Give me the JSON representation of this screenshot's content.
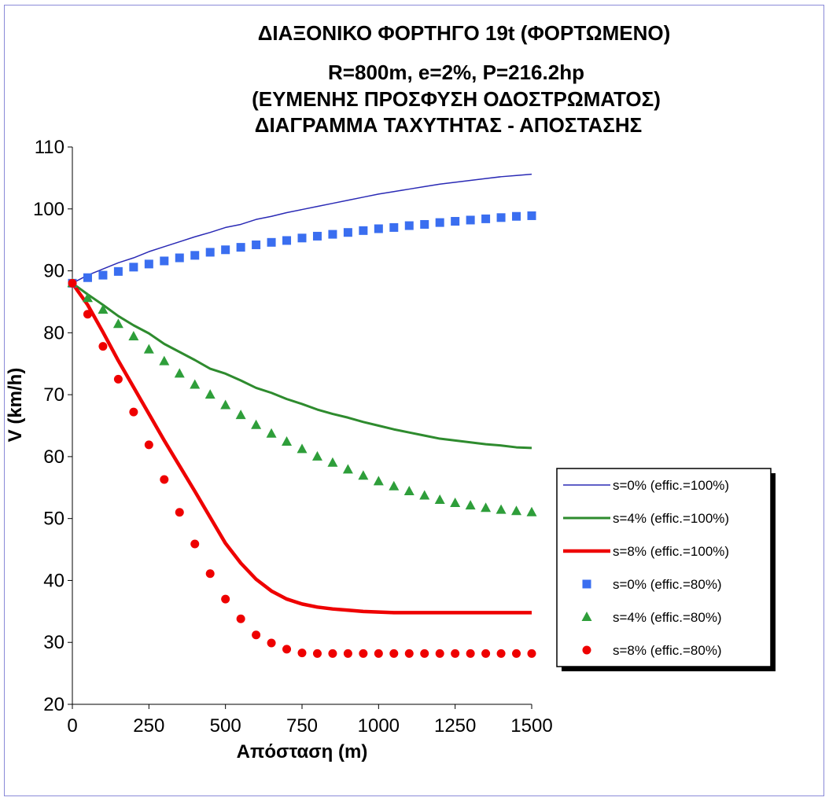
{
  "chart_data": {
    "type": "line",
    "title_lines": [
      "ΔΙΑΞΟΝΙΚΟ ΦΟΡΤΗΓΟ 19t (ΦΟΡΤΩΜΕΝΟ)",
      "R=800m, e=2%, P=216.2hp",
      "(ΕΥΜΕΝΗΣ ΠΡΟΣΦΥΣΗ ΟΔΟΣΤΡΩΜΑΤΟΣ)",
      "ΔΙΑΓΡΑΜΜΑ ΤΑΧΥΤΗΤΑΣ - ΑΠΟΣΤΑΣΗΣ"
    ],
    "xlabel": "Απόσταση (m)",
    "ylabel": "V (km/h)",
    "xlim": [
      0,
      1500
    ],
    "ylim": [
      20,
      110
    ],
    "xticks": [
      "0",
      "250",
      "500",
      "750",
      "1000",
      "1250",
      "1500"
    ],
    "yticks": [
      "20",
      "30",
      "40",
      "50",
      "60",
      "70",
      "80",
      "90",
      "100",
      "110"
    ],
    "grid": false,
    "legend_position": "right",
    "x": [
      0,
      50,
      100,
      150,
      200,
      250,
      300,
      350,
      400,
      450,
      500,
      550,
      600,
      650,
      700,
      750,
      800,
      850,
      900,
      950,
      1000,
      1050,
      1100,
      1150,
      1200,
      1250,
      1300,
      1350,
      1400,
      1450,
      1500
    ],
    "series": [
      {
        "name": "s=0% (effic.=100%)",
        "style": "line",
        "color": "#2a2ab5",
        "width": 1.5,
        "values": [
          88.0,
          89.3,
          90.3,
          91.3,
          92.1,
          93.1,
          93.9,
          94.7,
          95.5,
          96.2,
          97.0,
          97.5,
          98.3,
          98.8,
          99.4,
          99.9,
          100.4,
          100.9,
          101.4,
          101.9,
          102.4,
          102.8,
          103.2,
          103.6,
          104.0,
          104.3,
          104.6,
          104.9,
          105.2,
          105.4,
          105.6
        ]
      },
      {
        "name": "s=4% (effic.=100%)",
        "style": "line",
        "color": "#2e8b2e",
        "width": 3,
        "values": [
          88.0,
          86.2,
          84.5,
          82.7,
          81.2,
          79.9,
          78.2,
          76.9,
          75.6,
          74.2,
          73.4,
          72.3,
          71.1,
          70.3,
          69.3,
          68.5,
          67.6,
          66.9,
          66.3,
          65.6,
          65.0,
          64.4,
          63.9,
          63.4,
          62.9,
          62.6,
          62.3,
          62.0,
          61.8,
          61.5,
          61.4
        ]
      },
      {
        "name": "s=8% (effic.=100%)",
        "style": "line",
        "color": "#ee0000",
        "width": 4.5,
        "values": [
          88.0,
          84.5,
          80.1,
          75.5,
          71.2,
          66.9,
          62.6,
          58.5,
          54.4,
          50.2,
          46.0,
          42.8,
          40.2,
          38.3,
          37.0,
          36.2,
          35.7,
          35.4,
          35.2,
          35.0,
          34.9,
          34.8,
          34.8,
          34.8,
          34.8,
          34.8,
          34.8,
          34.8,
          34.8,
          34.8,
          34.8
        ]
      },
      {
        "name": "s=0% (effic.=80%)",
        "style": "square",
        "color": "#3a6ef0",
        "values": [
          88.0,
          88.9,
          89.3,
          89.9,
          90.6,
          91.1,
          91.6,
          92.1,
          92.5,
          93.0,
          93.4,
          93.8,
          94.2,
          94.6,
          94.9,
          95.3,
          95.6,
          95.9,
          96.2,
          96.5,
          96.8,
          97.0,
          97.3,
          97.5,
          97.8,
          98.0,
          98.2,
          98.4,
          98.6,
          98.8,
          98.9
        ]
      },
      {
        "name": "s=4% (effic.=80%)",
        "style": "triangle",
        "color": "#2e9e3a",
        "values": [
          88.0,
          85.6,
          83.7,
          81.4,
          79.4,
          77.3,
          75.4,
          73.4,
          71.6,
          70.0,
          68.3,
          66.7,
          65.1,
          63.7,
          62.4,
          61.2,
          60.0,
          59.0,
          57.9,
          56.9,
          56.0,
          55.2,
          54.4,
          53.7,
          53.0,
          52.5,
          52.1,
          51.7,
          51.4,
          51.2,
          51.0
        ]
      },
      {
        "name": "s=8% (effic.=80%)",
        "style": "circle",
        "color": "#ee0000",
        "values": [
          88.0,
          83.0,
          77.8,
          72.5,
          67.2,
          61.9,
          56.3,
          51.0,
          45.9,
          41.1,
          37.0,
          33.8,
          31.2,
          29.9,
          28.9,
          28.3,
          28.2,
          28.2,
          28.2,
          28.2,
          28.2,
          28.2,
          28.2,
          28.2,
          28.2,
          28.2,
          28.2,
          28.2,
          28.2,
          28.2,
          28.2
        ]
      }
    ]
  }
}
